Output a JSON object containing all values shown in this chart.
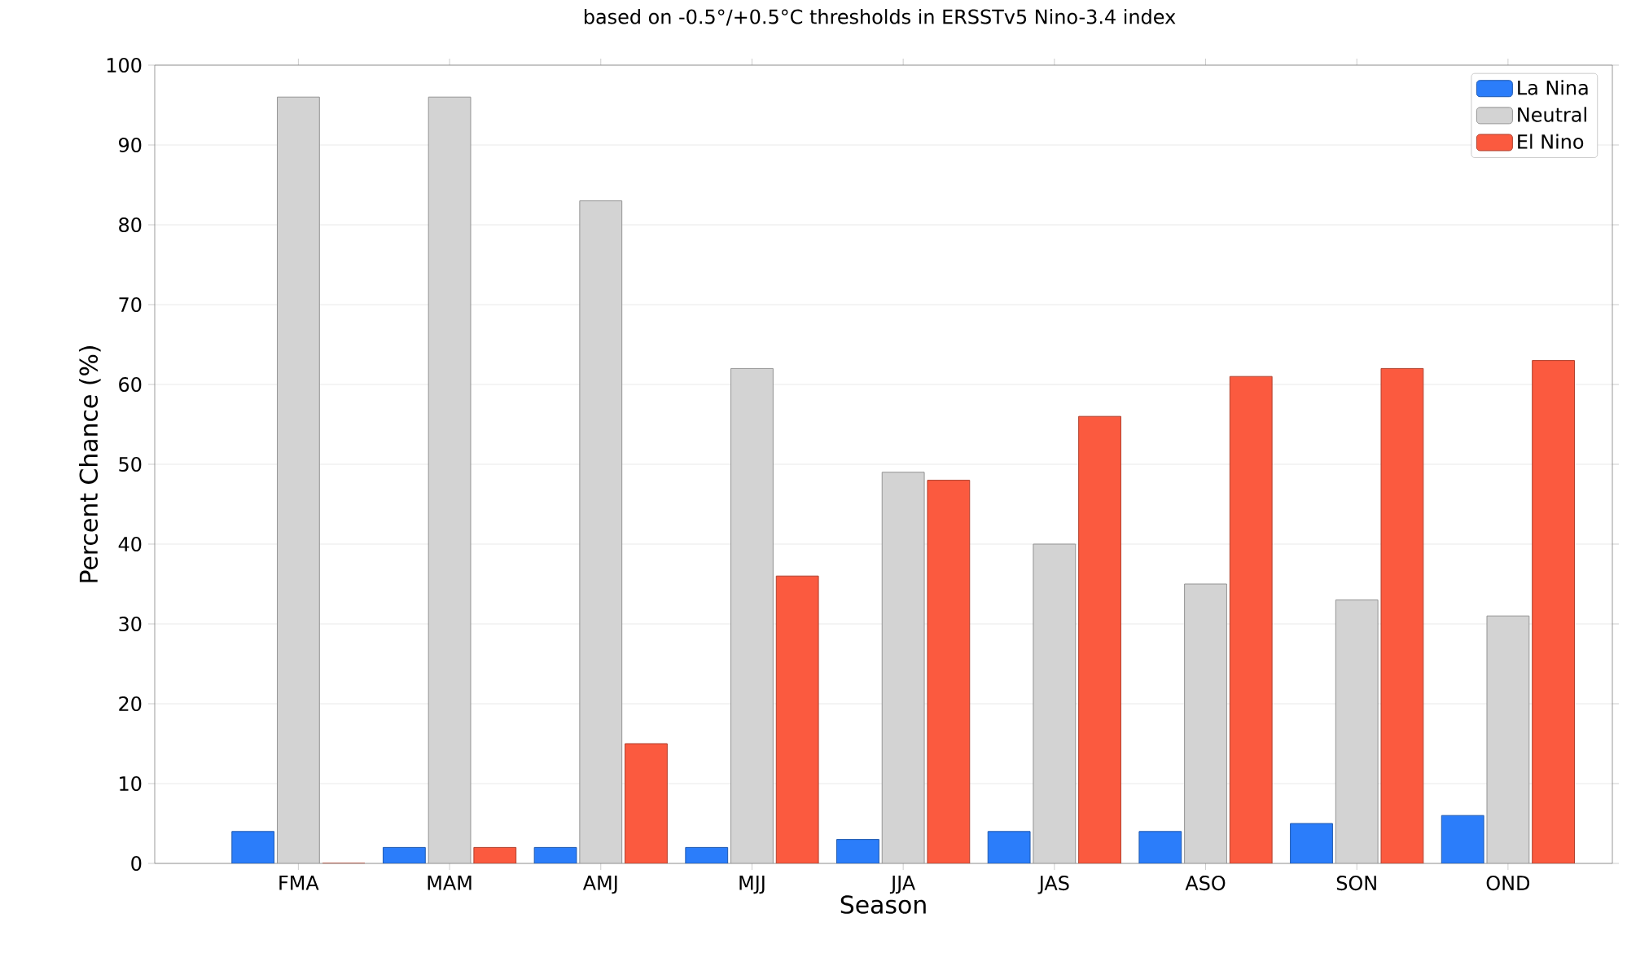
{
  "chart_data": {
    "type": "bar",
    "title": "based on -0.5°/+0.5°C thresholds in ERSSTv5 Nino-3.4 index",
    "xlabel": "Season",
    "ylabel": "Percent Chance (%)",
    "categories": [
      "FMA",
      "MAM",
      "AMJ",
      "MJJ",
      "JJA",
      "JAS",
      "ASO",
      "SON",
      "OND"
    ],
    "series": [
      {
        "name": "La Nina",
        "color": "#2b7dfa",
        "values": [
          4,
          2,
          2,
          2,
          3,
          4,
          4,
          5,
          6
        ]
      },
      {
        "name": "Neutral",
        "color": "#d3d3d3",
        "values": [
          96,
          96,
          83,
          62,
          49,
          40,
          35,
          33,
          31
        ]
      },
      {
        "name": "El Nino",
        "color": "#fb5a3f",
        "values": [
          0,
          2,
          15,
          36,
          48,
          56,
          61,
          62,
          63
        ]
      }
    ],
    "ylim": [
      0,
      100
    ],
    "yticks": [
      0,
      10,
      20,
      30,
      40,
      50,
      60,
      70,
      80,
      90,
      100
    ],
    "grid": "y",
    "legend": "top right"
  }
}
